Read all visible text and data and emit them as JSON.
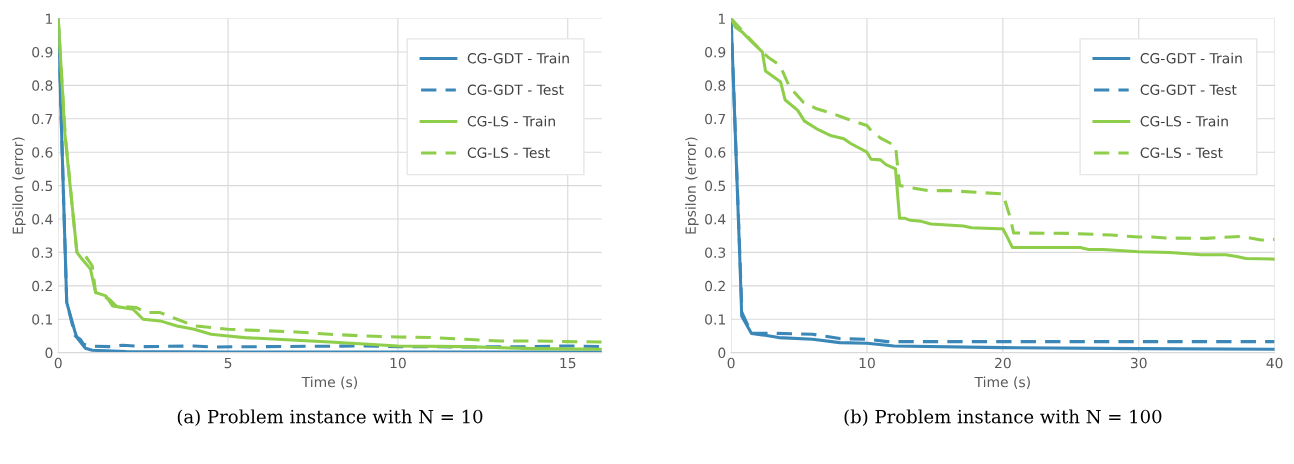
{
  "chart_data": [
    {
      "type": "line",
      "xlabel": "Time (s)",
      "ylabel": "Epsilon (error)",
      "xlim": [
        0,
        16
      ],
      "xticks": [
        0,
        5,
        10,
        15
      ],
      "ylim": [
        0,
        1
      ],
      "yticks": [
        0,
        0.1,
        0.2,
        0.3,
        0.4,
        0.5,
        0.6,
        0.7,
        0.8,
        0.9,
        1
      ],
      "grid": true,
      "legend": "top right",
      "annotations": [
        "(a) Problem instance with N = 10"
      ],
      "series": [
        {
          "name": "CG-GDT - Train",
          "color": "#3a87b8",
          "line_style": "solid",
          "x": [
            0,
            0.11,
            0.25,
            0.5,
            0.55,
            0.8,
            1,
            2,
            5,
            16
          ],
          "values": [
            1,
            0.62,
            0.15,
            0.06,
            0.045,
            0.013,
            0.007,
            0.003,
            0.002,
            0.002
          ]
        },
        {
          "name": "CG-GDT - Test",
          "color": "#3a87b8",
          "line_style": "dashed",
          "x": [
            0,
            0.25,
            0.5,
            0.65,
            0.75,
            0.9,
            1.5,
            1.9,
            2.5,
            4,
            4.5,
            6,
            9,
            10,
            12,
            14,
            15,
            16
          ],
          "values": [
            1,
            0.15,
            0.05,
            0.04,
            0.025,
            0.02,
            0.018,
            0.022,
            0.018,
            0.02,
            0.017,
            0.018,
            0.02,
            0.018,
            0.017,
            0.018,
            0.02,
            0.018
          ]
        },
        {
          "name": "CG-LS - Train",
          "color": "#8fce4a",
          "line_style": "solid",
          "x": [
            0,
            0.2,
            0.4,
            0.55,
            0.7,
            0.95,
            1.1,
            1.4,
            1.6,
            2.2,
            2.5,
            3,
            3.5,
            4,
            4.5,
            5,
            5.5,
            7,
            8,
            10,
            12,
            14,
            16
          ],
          "values": [
            1,
            0.65,
            0.45,
            0.3,
            0.28,
            0.25,
            0.18,
            0.17,
            0.14,
            0.13,
            0.1,
            0.095,
            0.08,
            0.07,
            0.055,
            0.05,
            0.045,
            0.037,
            0.032,
            0.02,
            0.018,
            0.012,
            0.01
          ]
        },
        {
          "name": "CG-LS - Test",
          "color": "#8fce4a",
          "line_style": "dashed",
          "x": [
            0,
            0.2,
            0.4,
            0.55,
            0.8,
            1.0,
            1.1,
            1.5,
            1.7,
            2.3,
            2.6,
            3,
            3.5,
            4,
            4.5,
            5,
            5.5,
            7,
            8,
            9,
            10,
            11,
            12,
            13,
            14,
            15,
            16
          ],
          "values": [
            1,
            0.66,
            0.45,
            0.3,
            0.29,
            0.26,
            0.18,
            0.16,
            0.14,
            0.135,
            0.12,
            0.12,
            0.1,
            0.08,
            0.075,
            0.07,
            0.068,
            0.062,
            0.055,
            0.05,
            0.047,
            0.045,
            0.04,
            0.035,
            0.035,
            0.033,
            0.032
          ]
        }
      ]
    },
    {
      "type": "line",
      "xlabel": "Time (s)",
      "ylabel": "Epsilon (error)",
      "xlim": [
        0,
        40
      ],
      "xticks": [
        0,
        10,
        20,
        30,
        40
      ],
      "ylim": [
        0,
        1
      ],
      "yticks": [
        0,
        0.1,
        0.2,
        0.3,
        0.4,
        0.5,
        0.6,
        0.7,
        0.8,
        0.9,
        1
      ],
      "grid": true,
      "legend": "top right",
      "annotations": [
        "(b) Problem instance with N = 100"
      ],
      "series": [
        {
          "name": "CG-GDT - Train",
          "color": "#3a87b8",
          "line_style": "solid",
          "x": [
            0,
            0.66,
            0.78,
            1.5,
            2.5,
            3.5,
            6,
            8,
            10,
            12,
            20,
            30,
            40
          ],
          "values": [
            1,
            0.26,
            0.11,
            0.057,
            0.052,
            0.045,
            0.04,
            0.03,
            0.028,
            0.02,
            0.015,
            0.012,
            0.01
          ]
        },
        {
          "name": "CG-GDT - Test",
          "color": "#3a87b8",
          "line_style": "dashed",
          "x": [
            0,
            0.8,
            1.5,
            3,
            6,
            8,
            10,
            11.5,
            40
          ],
          "values": [
            1,
            0.12,
            0.058,
            0.058,
            0.055,
            0.042,
            0.04,
            0.033,
            0.033
          ]
        },
        {
          "name": "CG-LS - Train",
          "color": "#8fce4a",
          "line_style": "solid",
          "x": [
            0,
            0.3,
            0.86,
            1.6,
            2.3,
            2.53,
            3.65,
            3.97,
            4.9,
            5.4,
            6.3,
            7.3,
            8.3,
            8.8,
            10,
            10.3,
            11,
            11.4,
            12.1,
            12.4,
            12.8,
            13.2,
            14,
            14.7,
            15.9,
            17.1,
            17.7,
            19.7,
            20,
            20.3,
            20.7,
            25.7,
            26.3,
            27.4,
            30,
            32.3,
            34.6,
            36.4,
            37.2,
            37.9,
            40
          ],
          "values": [
            1,
            0.975,
            0.958,
            0.927,
            0.9,
            0.843,
            0.81,
            0.757,
            0.725,
            0.693,
            0.67,
            0.65,
            0.64,
            0.626,
            0.6,
            0.579,
            0.577,
            0.563,
            0.55,
            0.402,
            0.402,
            0.396,
            0.393,
            0.385,
            0.382,
            0.379,
            0.374,
            0.371,
            0.371,
            0.348,
            0.315,
            0.315,
            0.309,
            0.309,
            0.302,
            0.3,
            0.293,
            0.293,
            0.288,
            0.282,
            0.28
          ]
        },
        {
          "name": "CG-LS - Test",
          "color": "#8fce4a",
          "line_style": "dashed",
          "x": [
            0,
            0.9,
            1.6,
            2.3,
            2.7,
            3.6,
            4.3,
            5.3,
            6.3,
            7.5,
            8.5,
            10,
            10.3,
            11,
            11.8,
            12.1,
            12.4,
            14.5,
            16,
            18,
            20,
            20.5,
            20.8,
            25,
            28,
            30,
            31,
            32,
            35,
            36,
            37.5,
            39,
            40
          ],
          "values": [
            1,
            0.96,
            0.93,
            0.9,
            0.885,
            0.86,
            0.795,
            0.75,
            0.73,
            0.715,
            0.7,
            0.68,
            0.665,
            0.642,
            0.625,
            0.62,
            0.5,
            0.485,
            0.485,
            0.48,
            0.475,
            0.41,
            0.358,
            0.357,
            0.352,
            0.346,
            0.346,
            0.343,
            0.342,
            0.345,
            0.348,
            0.337,
            0.339
          ]
        }
      ]
    }
  ]
}
